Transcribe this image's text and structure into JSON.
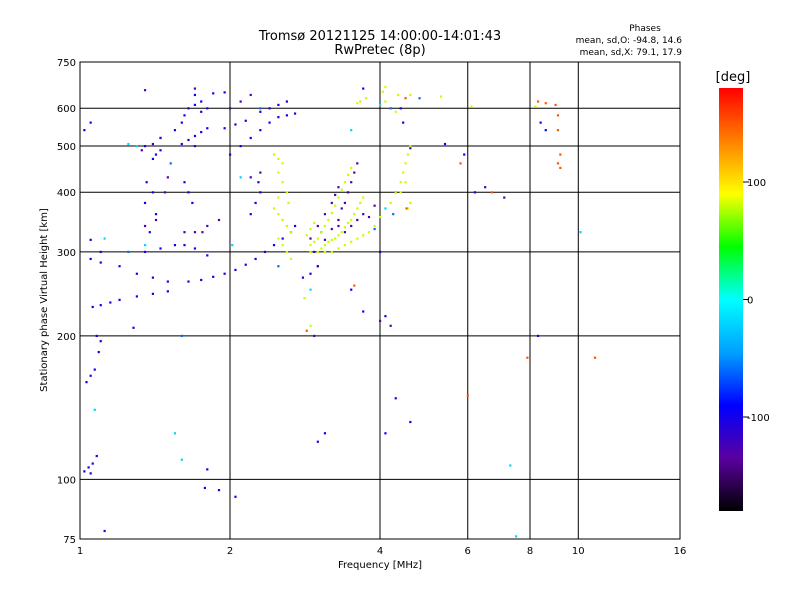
{
  "chart_data": {
    "type": "scatter",
    "title": "Tromsø 20121125 14:00:00-14:01:43",
    "subtitle": "RwPretec (8p)",
    "xlabel": "Frequency [MHz]",
    "ylabel": "Stationary phase Virtual Height [km]",
    "x_scale": "log",
    "y_scale": "log",
    "xlim": [
      1,
      16
    ],
    "ylim": [
      75,
      750
    ],
    "x_ticks": [
      1,
      2,
      4,
      6,
      8,
      10,
      16
    ],
    "y_ticks": [
      75,
      100,
      200,
      300,
      400,
      500,
      600,
      750
    ],
    "x_grid": [
      2,
      4,
      6,
      8,
      10
    ],
    "y_grid": [
      100,
      200,
      300,
      400,
      500,
      600
    ],
    "grid": true,
    "stats": {
      "heading": "Phases",
      "line_o": "mean, sd,O:  -94.8, 14.6",
      "line_x": "mean, sd,X:  79.1, 17.9"
    },
    "colorbar": {
      "label": "[deg]",
      "range": [
        -180,
        180
      ],
      "ticks": [
        "100",
        "0",
        "-100"
      ],
      "tick_values": [
        100,
        0,
        -100
      ],
      "colors": [
        "#000000",
        "#5a00a0",
        "#0000ff",
        "#00a0ff",
        "#00ffff",
        "#00ff00",
        "#ffff00",
        "#ff8000",
        "#ff0000"
      ]
    },
    "series": [
      {
        "phase": -100,
        "points": [
          [
            1.02,
            104
          ],
          [
            1.04,
            106
          ],
          [
            1.06,
            108
          ],
          [
            1.08,
            112
          ],
          [
            1.05,
            103
          ],
          [
            1.03,
            160
          ],
          [
            1.05,
            165
          ],
          [
            1.07,
            170
          ],
          [
            1.09,
            185
          ],
          [
            1.1,
            195
          ],
          [
            1.08,
            200
          ],
          [
            1.06,
            230
          ],
          [
            1.1,
            232
          ],
          [
            1.15,
            235
          ],
          [
            1.2,
            238
          ],
          [
            1.3,
            242
          ],
          [
            1.4,
            245
          ],
          [
            1.5,
            248
          ],
          [
            1.05,
            290
          ],
          [
            1.1,
            285
          ],
          [
            1.2,
            280
          ],
          [
            1.3,
            270
          ],
          [
            1.4,
            265
          ],
          [
            1.5,
            260
          ],
          [
            1.35,
            300
          ],
          [
            1.45,
            305
          ],
          [
            1.55,
            310
          ],
          [
            1.38,
            330
          ],
          [
            1.42,
            360
          ],
          [
            1.35,
            380
          ],
          [
            1.4,
            400
          ],
          [
            1.36,
            420
          ],
          [
            1.4,
            470
          ],
          [
            1.42,
            480
          ],
          [
            1.45,
            490
          ],
          [
            1.35,
            500
          ],
          [
            1.45,
            520
          ],
          [
            1.55,
            540
          ],
          [
            1.6,
            560
          ],
          [
            1.62,
            580
          ],
          [
            1.65,
            600
          ],
          [
            1.7,
            610
          ],
          [
            1.75,
            620
          ],
          [
            1.6,
            505
          ],
          [
            1.65,
            515
          ],
          [
            1.7,
            525
          ],
          [
            1.75,
            535
          ],
          [
            1.8,
            545
          ],
          [
            1.7,
            500
          ],
          [
            1.62,
            420
          ],
          [
            1.65,
            400
          ],
          [
            1.68,
            380
          ],
          [
            1.62,
            310
          ],
          [
            1.7,
            305
          ],
          [
            1.8,
            295
          ],
          [
            1.65,
            260
          ],
          [
            1.75,
            262
          ],
          [
            1.85,
            266
          ],
          [
            1.95,
            270
          ],
          [
            2.05,
            275
          ],
          [
            2.15,
            282
          ],
          [
            2.25,
            290
          ],
          [
            2.35,
            300
          ],
          [
            2.45,
            310
          ],
          [
            2.55,
            320
          ],
          [
            2.65,
            330
          ],
          [
            2.7,
            340
          ],
          [
            2.2,
            360
          ],
          [
            2.25,
            380
          ],
          [
            2.3,
            400
          ],
          [
            2.28,
            420
          ],
          [
            2.0,
            480
          ],
          [
            2.1,
            500
          ],
          [
            2.2,
            520
          ],
          [
            2.3,
            540
          ],
          [
            2.4,
            560
          ],
          [
            2.5,
            575
          ],
          [
            2.6,
            580
          ],
          [
            2.7,
            585
          ],
          [
            1.95,
            545
          ],
          [
            2.05,
            555
          ],
          [
            2.15,
            565
          ],
          [
            2.3,
            590
          ],
          [
            2.4,
            600
          ],
          [
            2.5,
            610
          ],
          [
            2.6,
            620
          ],
          [
            1.05,
            560
          ],
          [
            1.02,
            540
          ],
          [
            1.05,
            318
          ],
          [
            1.1,
            300
          ],
          [
            1.7,
            640
          ],
          [
            1.85,
            645
          ],
          [
            1.95,
            648
          ],
          [
            1.75,
            590
          ],
          [
            1.8,
            600
          ],
          [
            2.8,
            265
          ],
          [
            2.9,
            270
          ],
          [
            3.0,
            280
          ],
          [
            3.0,
            120
          ],
          [
            3.1,
            125
          ],
          [
            1.8,
            105
          ],
          [
            1.78,
            96
          ],
          [
            1.9,
            95
          ],
          [
            2.05,
            92
          ],
          [
            4.3,
            148
          ],
          [
            4.1,
            220
          ],
          [
            4.1,
            125
          ],
          [
            4.6,
            132
          ],
          [
            4.0,
            300
          ],
          [
            4.3,
            400
          ],
          [
            4.45,
            560
          ],
          [
            4.4,
            600
          ],
          [
            5.4,
            505
          ],
          [
            5.9,
            480
          ],
          [
            6.2,
            400
          ],
          [
            3.7,
            225
          ],
          [
            3.5,
            250
          ],
          [
            3.7,
            660
          ],
          [
            1.28,
            208
          ],
          [
            1.12,
            78
          ],
          [
            8.3,
            200
          ],
          [
            8.4,
            560
          ],
          [
            8.6,
            540
          ]
        ]
      },
      {
        "phase": -130,
        "points": [
          [
            1.35,
            340
          ],
          [
            1.42,
            350
          ],
          [
            1.48,
            400
          ],
          [
            1.5,
            430
          ],
          [
            1.33,
            490
          ],
          [
            1.4,
            505
          ],
          [
            1.45,
            520
          ],
          [
            1.62,
            330
          ],
          [
            1.7,
            330
          ],
          [
            1.76,
            330
          ],
          [
            1.8,
            340
          ],
          [
            1.9,
            350
          ],
          [
            2.2,
            430
          ],
          [
            2.3,
            440
          ],
          [
            2.0,
            600
          ],
          [
            2.1,
            620
          ],
          [
            2.2,
            640
          ],
          [
            1.7,
            660
          ],
          [
            1.35,
            655
          ],
          [
            3.3,
            350
          ],
          [
            3.35,
            370
          ],
          [
            3.4,
            380
          ],
          [
            3.45,
            400
          ],
          [
            3.5,
            420
          ],
          [
            3.55,
            440
          ],
          [
            3.6,
            460
          ],
          [
            3.4,
            330
          ],
          [
            3.5,
            340
          ],
          [
            3.6,
            350
          ],
          [
            3.7,
            360
          ],
          [
            3.3,
            340
          ],
          [
            3.2,
            335
          ],
          [
            3.1,
            318
          ],
          [
            3.05,
            330
          ],
          [
            3.0,
            340
          ],
          [
            3.1,
            360
          ],
          [
            3.2,
            380
          ],
          [
            3.25,
            395
          ],
          [
            3.3,
            410
          ],
          [
            3.8,
            355
          ],
          [
            3.9,
            375
          ],
          [
            2.9,
            320
          ],
          [
            2.95,
            300
          ],
          [
            2.95,
            200
          ],
          [
            4.2,
            210
          ],
          [
            4.6,
            495
          ],
          [
            6.5,
            410
          ],
          [
            7.1,
            390
          ],
          [
            4.0,
            215
          ],
          [
            3.0,
            280
          ]
        ]
      },
      {
        "phase": 80,
        "points": [
          [
            2.45,
            480
          ],
          [
            2.5,
            470
          ],
          [
            2.55,
            460
          ],
          [
            2.5,
            440
          ],
          [
            2.55,
            420
          ],
          [
            2.6,
            400
          ],
          [
            2.62,
            380
          ],
          [
            2.5,
            390
          ],
          [
            2.45,
            370
          ],
          [
            2.5,
            360
          ],
          [
            2.55,
            350
          ],
          [
            2.6,
            340
          ],
          [
            2.65,
            330
          ],
          [
            2.5,
            320
          ],
          [
            2.55,
            310
          ],
          [
            2.6,
            300
          ],
          [
            2.65,
            290
          ],
          [
            3.0,
            300
          ],
          [
            3.05,
            305
          ],
          [
            3.1,
            310
          ],
          [
            3.15,
            315
          ],
          [
            3.2,
            318
          ],
          [
            3.25,
            320
          ],
          [
            3.3,
            325
          ],
          [
            3.35,
            330
          ],
          [
            3.4,
            338
          ],
          [
            3.45,
            345
          ],
          [
            3.5,
            350
          ],
          [
            3.55,
            360
          ],
          [
            3.6,
            370
          ],
          [
            3.65,
            380
          ],
          [
            3.7,
            390
          ],
          [
            2.9,
            310
          ],
          [
            2.95,
            315
          ],
          [
            3.0,
            320
          ],
          [
            3.05,
            330
          ],
          [
            3.1,
            340
          ],
          [
            3.15,
            350
          ],
          [
            3.2,
            362
          ],
          [
            3.25,
            375
          ],
          [
            3.3,
            390
          ],
          [
            3.35,
            405
          ],
          [
            3.4,
            420
          ],
          [
            3.45,
            435
          ],
          [
            3.5,
            450
          ],
          [
            2.9,
            335
          ],
          [
            2.95,
            345
          ],
          [
            2.85,
            325
          ],
          [
            2.9,
            300
          ],
          [
            3.1,
            300
          ],
          [
            3.2,
            300
          ],
          [
            3.3,
            305
          ],
          [
            3.4,
            310
          ],
          [
            3.5,
            315
          ],
          [
            3.6,
            320
          ],
          [
            3.7,
            325
          ],
          [
            3.8,
            330
          ],
          [
            3.9,
            340
          ],
          [
            4.0,
            355
          ],
          [
            4.2,
            380
          ],
          [
            4.3,
            400
          ],
          [
            4.4,
            420
          ],
          [
            4.45,
            440
          ],
          [
            4.5,
            460
          ],
          [
            4.55,
            480
          ],
          [
            4.6,
            500
          ],
          [
            4.5,
            420
          ],
          [
            4.4,
            400
          ],
          [
            4.55,
            370
          ],
          [
            4.6,
            380
          ],
          [
            4.3,
            590
          ],
          [
            4.35,
            640
          ],
          [
            4.1,
            620
          ],
          [
            4.05,
            650
          ],
          [
            3.75,
            630
          ],
          [
            3.65,
            620
          ],
          [
            3.6,
            615
          ],
          [
            5.3,
            635
          ],
          [
            6.1,
            605
          ],
          [
            8.2,
            605
          ],
          [
            2.82,
            240
          ],
          [
            2.9,
            210
          ],
          [
            4.1,
            665
          ],
          [
            4.6,
            640
          ]
        ]
      },
      {
        "phase": 150,
        "points": [
          [
            4.52,
            370
          ],
          [
            6.7,
            400
          ],
          [
            5.8,
            460
          ],
          [
            6.0,
            150
          ],
          [
            7.9,
            180
          ],
          [
            9.0,
            610
          ],
          [
            9.1,
            580
          ],
          [
            9.1,
            540
          ],
          [
            9.2,
            480
          ],
          [
            9.1,
            460
          ],
          [
            9.2,
            450
          ],
          [
            8.3,
            620
          ],
          [
            8.6,
            615
          ],
          [
            10.8,
            180
          ],
          [
            4.5,
            630
          ],
          [
            2.85,
            205
          ],
          [
            3.55,
            255
          ]
        ]
      },
      {
        "phase": -20,
        "points": [
          [
            1.25,
            505
          ],
          [
            1.3,
            500
          ],
          [
            1.07,
            140
          ],
          [
            1.55,
            125
          ],
          [
            1.6,
            110
          ],
          [
            1.12,
            320
          ],
          [
            1.35,
            310
          ],
          [
            2.02,
            310
          ],
          [
            2.1,
            430
          ],
          [
            2.9,
            250
          ],
          [
            3.5,
            540
          ],
          [
            4.0,
            610
          ],
          [
            7.3,
            107
          ],
          [
            7.5,
            76
          ],
          [
            10.1,
            330
          ],
          [
            4.1,
            370
          ]
        ]
      },
      {
        "phase": -60,
        "points": [
          [
            1.6,
            200
          ],
          [
            1.25,
            300
          ],
          [
            1.52,
            460
          ],
          [
            2.5,
            280
          ],
          [
            2.3,
            600
          ],
          [
            4.2,
            600
          ],
          [
            4.8,
            630
          ],
          [
            3.9,
            335
          ],
          [
            4.25,
            360
          ]
        ]
      }
    ]
  }
}
